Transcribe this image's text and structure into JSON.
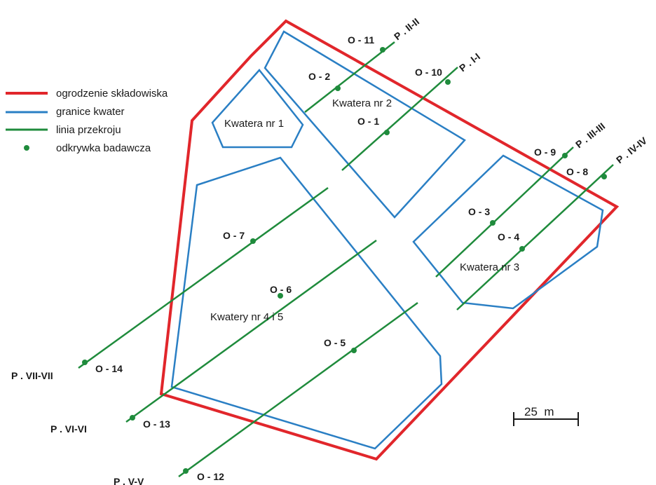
{
  "legend": {
    "fence": "ogrodzenie składowiska",
    "boundaries": "granice kwater",
    "section_line": "linia przekroju",
    "test_pit": "odkrywka badawcza"
  },
  "colors": {
    "fence": "#e1262b",
    "boundaries": "#2a7fc4",
    "section": "#1f8b3c",
    "text": "#1a1a1a"
  },
  "quarters": {
    "q1": "Kwatera nr 1",
    "q2": "Kwatera nr 2",
    "q3": "Kwatera nr 3",
    "q45": "Kwatery nr 4 i 5"
  },
  "sections": {
    "s1": "P . I-I",
    "s2": "P . II-II",
    "s3": "P . III-III",
    "s4": "P . IV-IV",
    "s5": "P . V-V",
    "s6": "P . VI-VI",
    "s7": "P . VII-VII"
  },
  "pits": {
    "o1": "O - 1",
    "o2": "O - 2",
    "o3": "O - 3",
    "o4": "O - 4",
    "o5": "O - 5",
    "o6": "O - 6",
    "o7": "O - 7",
    "o8": "O - 8",
    "o9": "O - 9",
    "o10": "O - 10",
    "o11": "O - 11",
    "o12": "O - 12",
    "o13": "O - 13",
    "o14": "O - 14"
  },
  "scale": {
    "label": "25  m"
  }
}
